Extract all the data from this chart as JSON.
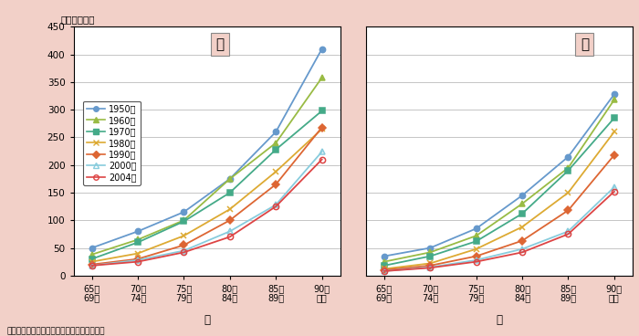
{
  "ylabel_top": "（人口千対）",
  "xlabel_male": "男",
  "xlabel_female": "女",
  "source": "資料：厚生労働省「人口動態統計」より作成",
  "x_labels": [
    "65～\n69歳",
    "70～\n74歳",
    "75～\n79歳",
    "80～\n84歳",
    "85～\n89歳",
    "90歵\n以上"
  ],
  "ylim": [
    0,
    450
  ],
  "yticks": [
    0,
    50,
    100,
    150,
    200,
    250,
    300,
    350,
    400,
    450
  ],
  "background_color": "#f2d0c8",
  "plot_background": "#ffffff",
  "label_box_color": "#f2d0c8",
  "male_label": "男",
  "female_label": "女",
  "series": [
    {
      "label": "1950年",
      "color": "#6699cc",
      "marker": "o",
      "fillstyle": "full",
      "male": [
        50,
        80,
        115,
        175,
        260,
        410
      ],
      "female": [
        35,
        50,
        85,
        145,
        215,
        328
      ]
    },
    {
      "label": "1960年",
      "color": "#99bb44",
      "marker": "^",
      "fillstyle": "full",
      "male": [
        38,
        65,
        100,
        175,
        240,
        358
      ],
      "female": [
        25,
        42,
        72,
        130,
        195,
        318
      ]
    },
    {
      "label": "1970年",
      "color": "#44aa88",
      "marker": "s",
      "fillstyle": "full",
      "male": [
        30,
        60,
        98,
        150,
        228,
        298
      ],
      "female": [
        18,
        35,
        62,
        112,
        190,
        285
      ]
    },
    {
      "label": "1980年",
      "color": "#ddaa33",
      "marker": "x",
      "fillstyle": "full",
      "male": [
        25,
        40,
        72,
        120,
        188,
        265
      ],
      "female": [
        12,
        22,
        48,
        88,
        150,
        260
      ]
    },
    {
      "label": "1990年",
      "color": "#dd6633",
      "marker": "D",
      "fillstyle": "full",
      "male": [
        20,
        30,
        55,
        100,
        165,
        268
      ],
      "female": [
        10,
        18,
        35,
        63,
        118,
        218
      ]
    },
    {
      "label": "2000年",
      "color": "#88ccdd",
      "marker": "^",
      "fillstyle": "none",
      "male": [
        18,
        28,
        45,
        80,
        128,
        224
      ],
      "female": [
        8,
        15,
        28,
        48,
        80,
        160
      ]
    },
    {
      "label": "2004年",
      "color": "#dd4444",
      "marker": "o",
      "fillstyle": "none",
      "male": [
        18,
        25,
        42,
        70,
        125,
        210
      ],
      "female": [
        8,
        14,
        25,
        42,
        75,
        152
      ]
    }
  ]
}
